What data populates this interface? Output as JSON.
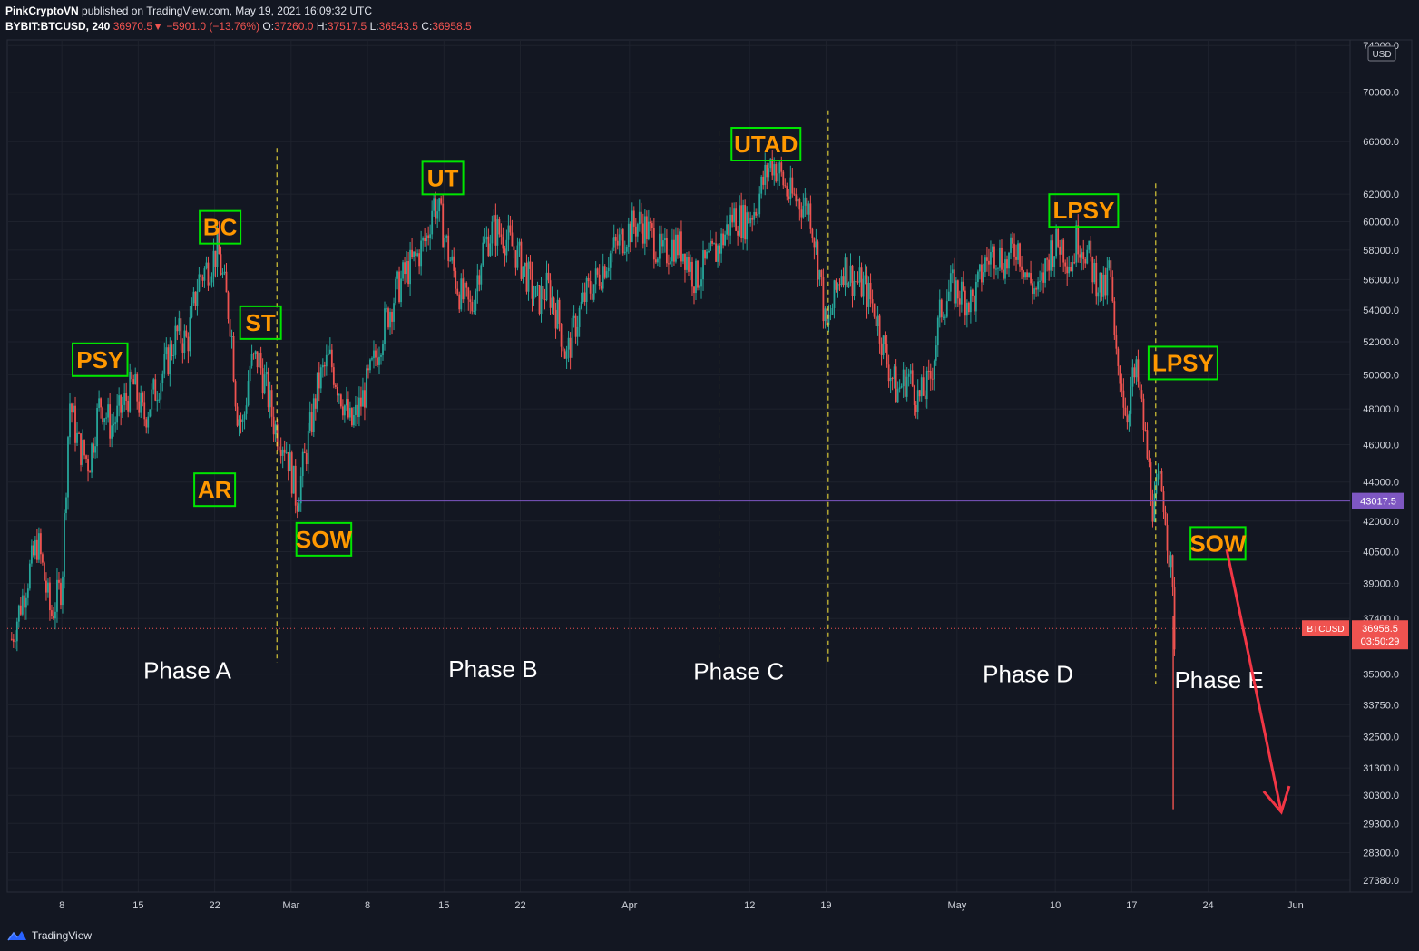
{
  "header": {
    "publisher": "PinkCryptoVN",
    "published_text": "published on TradingView.com, May 19, 2021 16:09:32 UTC",
    "symbol": "BYBIT:BTCUSD, 240",
    "last": "36970.5",
    "change_arrow": "▼",
    "change": "−5901.0 (−13.76%)",
    "o_label": "O:",
    "o_value": "37260.0",
    "h_label": "H:",
    "h_value": "37517.5",
    "l_label": "L:",
    "l_value": "36543.5",
    "c_label": "C:",
    "c_value": "36958.5"
  },
  "footer": {
    "brand": "TradingView"
  },
  "colors": {
    "background": "#131722",
    "grid": "#1e222d",
    "up": "#26a69a",
    "down": "#ef5350",
    "label_text": "#ff9800",
    "label_border": "#00e600",
    "level_line": "#7e57c2",
    "phase_line": "#ffeb3b",
    "arrow": "#f23645"
  },
  "chart_data": {
    "type": "candlestick",
    "currency": "USD",
    "scale": "log",
    "ylim": [
      27000,
      74500
    ],
    "xlim_days": [
      -5,
      118
    ],
    "x_ticks": [
      {
        "day": 0,
        "label": "8"
      },
      {
        "day": 7,
        "label": "15"
      },
      {
        "day": 14,
        "label": "22"
      },
      {
        "day": 21,
        "label": "Mar"
      },
      {
        "day": 28,
        "label": "8"
      },
      {
        "day": 35,
        "label": "15"
      },
      {
        "day": 42,
        "label": "22"
      },
      {
        "day": 52,
        "label": "Apr"
      },
      {
        "day": 63,
        "label": "12"
      },
      {
        "day": 70,
        "label": "19"
      },
      {
        "day": 82,
        "label": "May"
      },
      {
        "day": 91,
        "label": "10"
      },
      {
        "day": 98,
        "label": "17"
      },
      {
        "day": 105,
        "label": "24"
      },
      {
        "day": 113,
        "label": "Jun"
      }
    ],
    "y_ticks": [
      "74000.0",
      "70000.0",
      "66000.0",
      "62000.0",
      "60000.0",
      "58000.0",
      "56000.0",
      "54000.0",
      "52000.0",
      "50000.0",
      "48000.0",
      "46000.0",
      "44000.0",
      "42000.0",
      "40500.0",
      "39000.0",
      "37400.0",
      "35000.0",
      "33750.0",
      "32500.0",
      "31300.0",
      "30300.0",
      "29300.0",
      "28300.0",
      "27380.0"
    ],
    "price_path": [
      [
        -4.6,
        36500
      ],
      [
        -3,
        39500
      ],
      [
        -2.2,
        41000
      ],
      [
        -1,
        37500
      ],
      [
        0,
        39000
      ],
      [
        0.7,
        48500
      ],
      [
        1.5,
        46000
      ],
      [
        2.5,
        45000
      ],
      [
        3.5,
        48500
      ],
      [
        4.5,
        47000
      ],
      [
        5.5,
        48000
      ],
      [
        6.5,
        49500
      ],
      [
        7.5,
        47500
      ],
      [
        8.5,
        49000
      ],
      [
        9.5,
        50500
      ],
      [
        10.5,
        52500
      ],
      [
        11.5,
        52000
      ],
      [
        12.5,
        56000
      ],
      [
        13.5,
        57000
      ],
      [
        14.3,
        58000
      ],
      [
        15,
        55000
      ],
      [
        15.5,
        53000
      ],
      [
        16,
        48000
      ],
      [
        16.6,
        47000
      ],
      [
        17.2,
        50500
      ],
      [
        18,
        51000
      ],
      [
        18.8,
        49000
      ],
      [
        19.5,
        47000
      ],
      [
        20.5,
        46000
      ],
      [
        21.2,
        44000
      ],
      [
        21.5,
        43000
      ],
      [
        22.5,
        46000
      ],
      [
        23.5,
        49500
      ],
      [
        24.5,
        51000
      ],
      [
        25.5,
        49000
      ],
      [
        26.5,
        47000
      ],
      [
        27.5,
        48500
      ],
      [
        28.5,
        50500
      ],
      [
        29.5,
        53000
      ],
      [
        30.5,
        55000
      ],
      [
        31.5,
        56500
      ],
      [
        32.5,
        57500
      ],
      [
        33.5,
        59000
      ],
      [
        34,
        61500
      ],
      [
        34.6,
        60500
      ],
      [
        35.5,
        57500
      ],
      [
        36.5,
        55000
      ],
      [
        37.5,
        54000
      ],
      [
        38.5,
        58000
      ],
      [
        39.5,
        59500
      ],
      [
        40.5,
        59000
      ],
      [
        41.5,
        58000
      ],
      [
        42.5,
        56500
      ],
      [
        43.5,
        54500
      ],
      [
        44.5,
        55500
      ],
      [
        45.5,
        53500
      ],
      [
        46.2,
        51000
      ],
      [
        47,
        53000
      ],
      [
        48,
        55000
      ],
      [
        49,
        56000
      ],
      [
        50,
        57500
      ],
      [
        51,
        58500
      ],
      [
        52,
        59500
      ],
      [
        53,
        60000
      ],
      [
        54,
        59000
      ],
      [
        55,
        57500
      ],
      [
        56,
        58500
      ],
      [
        57,
        58000
      ],
      [
        58,
        56000
      ],
      [
        59,
        57000
      ],
      [
        60,
        58000
      ],
      [
        61,
        59500
      ],
      [
        61.5,
        60500
      ],
      [
        62.5,
        60000
      ],
      [
        63.5,
        61000
      ],
      [
        64.5,
        63500
      ],
      [
        65,
        64500
      ],
      [
        65.8,
        63500
      ],
      [
        66.5,
        62000
      ],
      [
        67.5,
        61500
      ],
      [
        68.5,
        61000
      ],
      [
        69.5,
        56000
      ],
      [
        70,
        52500
      ],
      [
        70.5,
        54000
      ],
      [
        71.5,
        57000
      ],
      [
        72.5,
        56000
      ],
      [
        73.5,
        55500
      ],
      [
        74.5,
        54000
      ],
      [
        75.5,
        51000
      ],
      [
        76.5,
        49000
      ],
      [
        77.5,
        50000
      ],
      [
        78.5,
        48500
      ],
      [
        79.5,
        49500
      ],
      [
        80.5,
        54000
      ],
      [
        81.5,
        55500
      ],
      [
        82.5,
        55000
      ],
      [
        83.5,
        54500
      ],
      [
        84.5,
        57000
      ],
      [
        85.5,
        58000
      ],
      [
        86.5,
        57000
      ],
      [
        87.5,
        58500
      ],
      [
        88.5,
        56000
      ],
      [
        89.5,
        55000
      ],
      [
        90.5,
        58000
      ],
      [
        91.5,
        58500
      ],
      [
        92.5,
        57000
      ],
      [
        93,
        59000
      ],
      [
        93.8,
        58000
      ],
      [
        94.5,
        56500
      ],
      [
        95.5,
        55000
      ],
      [
        96,
        57000
      ],
      [
        96.5,
        51000
      ],
      [
        97,
        50000
      ],
      [
        97.5,
        47500
      ],
      [
        98,
        49500
      ],
      [
        98.5,
        50000
      ],
      [
        99,
        47500
      ],
      [
        99.5,
        45000
      ],
      [
        100,
        42500
      ],
      [
        100.5,
        44000
      ],
      [
        101,
        43000
      ],
      [
        101.4,
        40500
      ],
      [
        101.7,
        39000
      ],
      [
        101.9,
        36500
      ],
      [
        102,
        37000
      ]
    ],
    "spikes": [
      [
        101.8,
        29800,
        37500
      ]
    ],
    "price_lines": [
      {
        "price": 43017.5,
        "label": "43017.5",
        "style": "solid",
        "color": "#7e57c2"
      },
      {
        "price": 36958.5,
        "label": "36958.5",
        "symbol": "BTCUSD",
        "countdown": "03:50:29",
        "style": "dotted",
        "color": "#ef5350"
      }
    ],
    "level_line_start_day": 21.5,
    "phase_lines": [
      {
        "day": 19.7,
        "top": 65500,
        "bottom": 35500
      },
      {
        "day": 60.2,
        "top": 66800,
        "bottom": 35200
      },
      {
        "day": 70.2,
        "top": 68500,
        "bottom": 35500
      },
      {
        "day": 100.2,
        "top": 62800,
        "bottom": 34600
      }
    ],
    "annotations": [
      {
        "text": "PSY",
        "day": 3.5,
        "price": 50900
      },
      {
        "text": "BC",
        "day": 14.5,
        "price": 59600
      },
      {
        "text": "ST",
        "day": 18.2,
        "price": 53200
      },
      {
        "text": "AR",
        "day": 14.0,
        "price": 43600
      },
      {
        "text": "SOW",
        "day": 24.0,
        "price": 41100
      },
      {
        "text": "UT",
        "day": 34.9,
        "price": 63200
      },
      {
        "text": "UTAD",
        "day": 64.5,
        "price": 65800
      },
      {
        "text": "LPSY",
        "day": 93.6,
        "price": 60800
      },
      {
        "text": "LPSY",
        "day": 102.7,
        "price": 50700
      },
      {
        "text": "SOW",
        "day": 105.9,
        "price": 40900
      }
    ],
    "phases": [
      {
        "text": "Phase A",
        "day": 11.5,
        "price": 35200
      },
      {
        "text": "Phase B",
        "day": 39.5,
        "price": 35250
      },
      {
        "text": "Phase C",
        "day": 62.0,
        "price": 35150
      },
      {
        "text": "Phase D",
        "day": 88.5,
        "price": 35050
      },
      {
        "text": "Phase E",
        "day": 106.0,
        "price": 34800
      }
    ],
    "forecast_arrow": {
      "from": [
        106.7,
        40600
      ],
      "to": [
        111.7,
        29700
      ]
    }
  }
}
